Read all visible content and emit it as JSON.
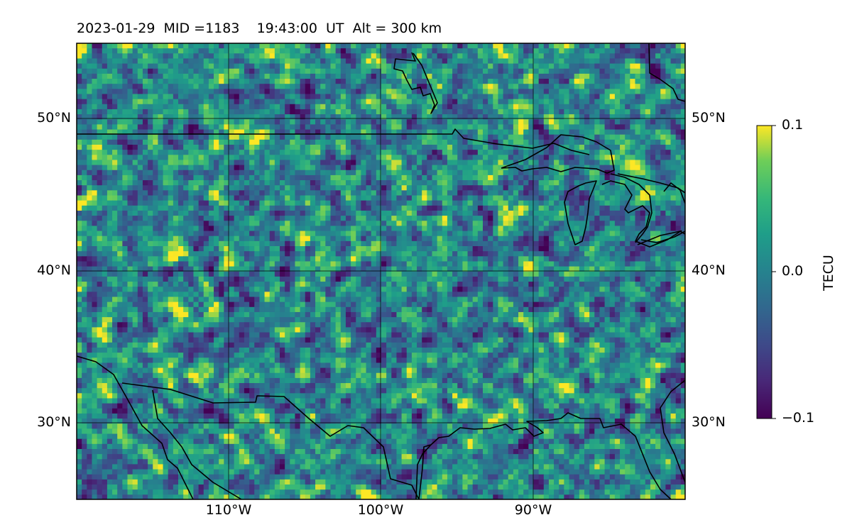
{
  "title": "2023-01-29  MID =1183    19:43:00  UT  Alt = 300 km",
  "map": {
    "region": "North America (central / Great Lakes / Gulf)",
    "lon_range": [
      -120,
      -80
    ],
    "lat_range": [
      25,
      55
    ],
    "projection": "PlateCarree",
    "gridlines": true,
    "coastlines": true,
    "borders": true
  },
  "axes": {
    "lat_ticks": [
      "50°N",
      "40°N",
      "30°N"
    ],
    "lon_ticks": [
      "110°W",
      "100°W",
      "90°W"
    ]
  },
  "colorbar": {
    "label": "TECU",
    "ticks": [
      "0.1",
      "0.0",
      "−0.1"
    ],
    "min": -0.1,
    "max": 0.1,
    "colormap": "viridis"
  },
  "colors": {
    "frame": "#000000",
    "grid": "#000000",
    "viridis_low": "#440154",
    "viridis_mid": "#21908d",
    "viridis_high": "#fde725"
  }
}
